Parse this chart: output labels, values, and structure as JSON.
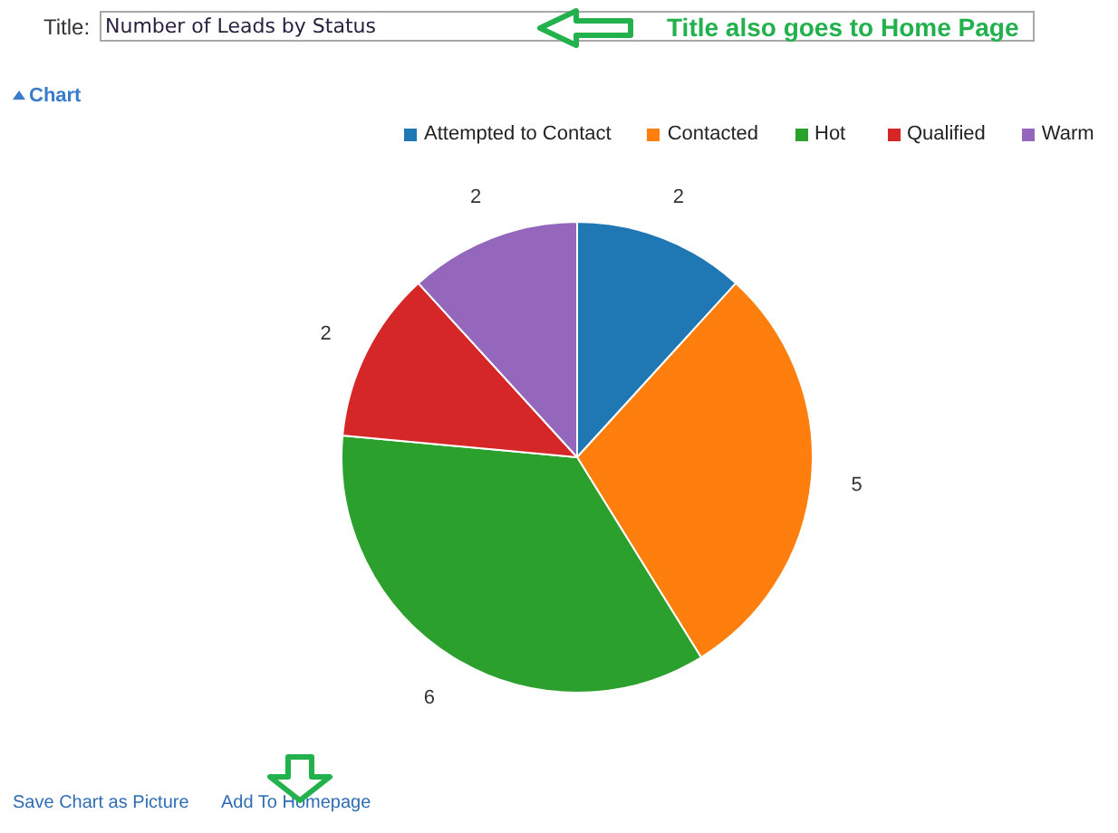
{
  "chart_data": {
    "type": "pie",
    "title": "Number of Leads by Status",
    "categories": [
      "Attempted to Contact",
      "Contacted",
      "Hot",
      "Qualified",
      "Warm"
    ],
    "values": [
      2,
      5,
      6,
      2,
      2
    ],
    "colors": [
      "#1f77b4",
      "#ff7f0e",
      "#2ca02c",
      "#d62728",
      "#9467bd"
    ],
    "data_labels": true,
    "legend": "top",
    "annotations": [
      "Title:",
      "Title also goes to Home Page",
      "Chart",
      "Save Chart as Picture",
      "Add To Homepage"
    ]
  }
}
